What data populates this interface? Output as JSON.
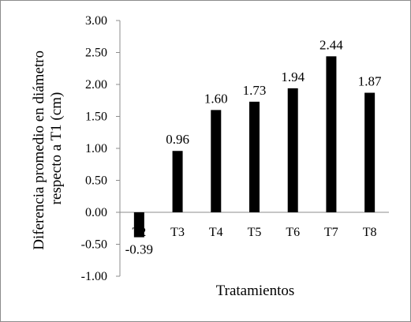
{
  "chart_data": {
    "type": "bar",
    "categories": [
      "T2",
      "T3",
      "T4",
      "T5",
      "T6",
      "T7",
      "T8"
    ],
    "values": [
      -0.39,
      0.96,
      1.6,
      1.73,
      1.94,
      2.44,
      1.87
    ],
    "data_labels": [
      "-0.39",
      "0.96",
      "1.60",
      "1.73",
      "1.94",
      "2.44",
      "1.87"
    ],
    "yticks": [
      "-1.00",
      "-0.50",
      "0.00",
      "0.50",
      "1.00",
      "1.50",
      "2.00",
      "2.50",
      "3.00"
    ],
    "ylim": [
      -1.0,
      3.0
    ],
    "xlabel": "Tratamientos",
    "ylabel_lines": [
      "Diferencia promedio en diámetro",
      "respecto a T1 (cm)"
    ],
    "title": "",
    "grid": false,
    "legend": "none",
    "bar_color": "#000000",
    "axis_color": "#8c8c8c"
  }
}
